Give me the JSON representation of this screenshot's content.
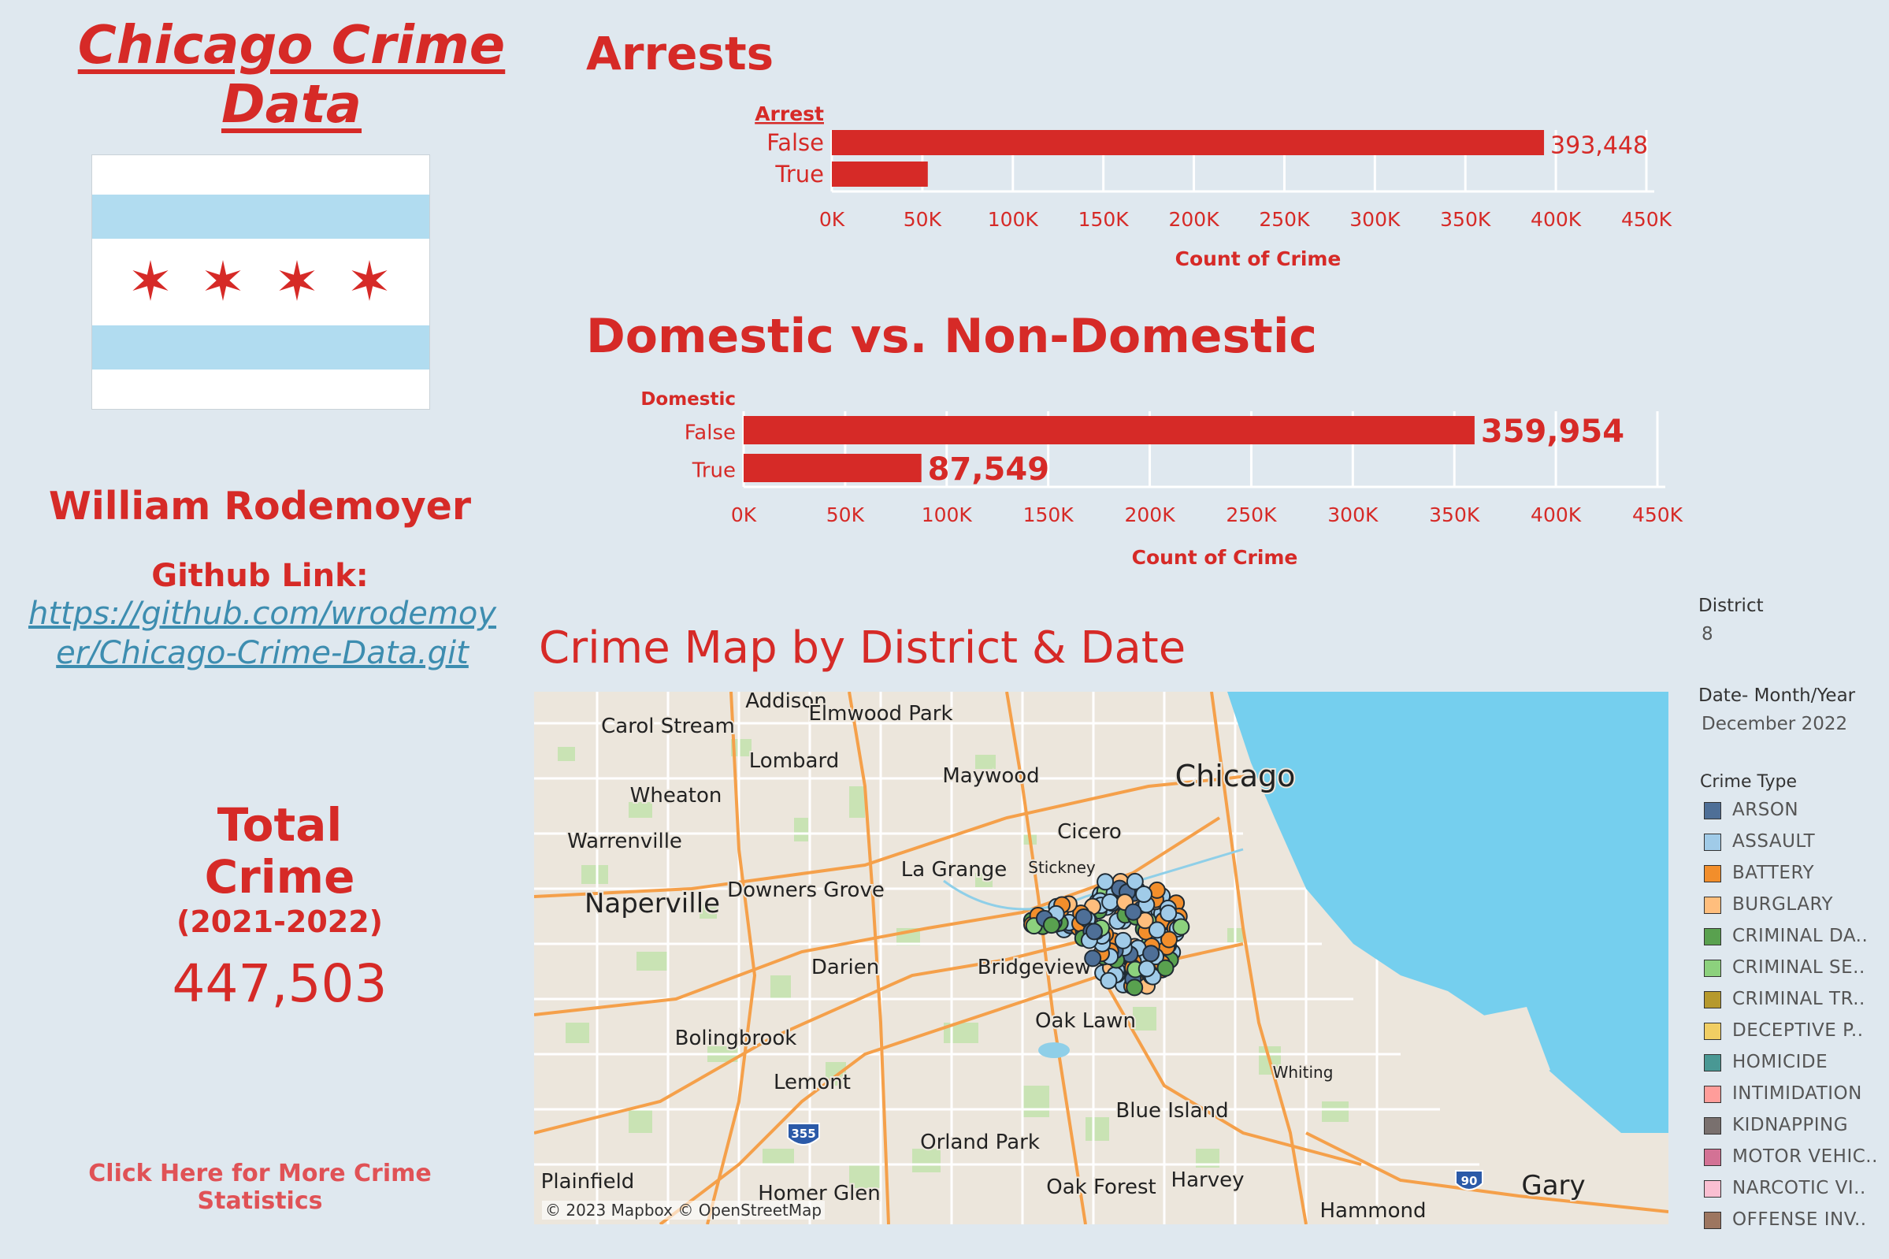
{
  "title": "Chicago Crime Data",
  "author": "William Rodemoyer",
  "github": {
    "label": "Github Link:",
    "url": "https://github.com/wrodemoyer/Chicago-Crime-Data.git"
  },
  "total": {
    "title_line1": "Total",
    "title_line2": "Crime",
    "years": "(2021-2022)",
    "value": "447,503"
  },
  "more_link": "Click Here for More Crime Statistics",
  "arrests_title": "Arrests",
  "domestic_title": "Domestic vs. Non-Domestic",
  "map": {
    "title": "Crime Map by District & Date",
    "attribution": "© 2023 Mapbox © OpenStreetMap",
    "places": [
      "Addison",
      "Carol Stream",
      "Elmwood Park",
      "Lombard",
      "Maywood",
      "Chicago",
      "Wheaton",
      "Cicero",
      "Warrenville",
      "Stickney",
      "La Grange",
      "Downers Grove",
      "Naperville",
      "Darien",
      "Bridgeview",
      "Oak Lawn",
      "Bolingbrook",
      "Whiting",
      "Lemont",
      "Blue Island",
      "Orland Park",
      "Plainfield",
      "Harvey",
      "Homer Glen",
      "Oak Forest",
      "Gary",
      "Hammond"
    ],
    "shields": [
      "355",
      "90"
    ]
  },
  "filters": {
    "district_label": "District",
    "district_value": "8",
    "date_label": "Date- Month/Year",
    "date_value": "December 2022",
    "crime_type_label": "Crime Type"
  },
  "legend": [
    {
      "label": "ARSON",
      "color": "#4e6f97"
    },
    {
      "label": "ASSAULT",
      "color": "#a0cbe8"
    },
    {
      "label": "BATTERY",
      "color": "#f28e2b"
    },
    {
      "label": "BURGLARY",
      "color": "#ffbe7d"
    },
    {
      "label": "CRIMINAL DA..",
      "color": "#59a14f"
    },
    {
      "label": "CRIMINAL SE..",
      "color": "#8cd17d"
    },
    {
      "label": "CRIMINAL TR..",
      "color": "#b6992d"
    },
    {
      "label": "DECEPTIVE P..",
      "color": "#f1ce63"
    },
    {
      "label": "HOMICIDE",
      "color": "#499894"
    },
    {
      "label": "INTIMIDATION",
      "color": "#ff9d9a"
    },
    {
      "label": "KIDNAPPING",
      "color": "#79706e"
    },
    {
      "label": "MOTOR VEHIC..",
      "color": "#d37295"
    },
    {
      "label": "NARCOTIC VI..",
      "color": "#fabfd2"
    },
    {
      "label": "OFFENSE INV..",
      "color": "#9d7660"
    }
  ],
  "colors": {
    "accent": "#d62a27",
    "lake": "#75cfee",
    "link": "#3d8db0"
  },
  "chart_data": [
    {
      "type": "bar",
      "orientation": "horizontal",
      "title": "Arrests",
      "legend_title": "Arrest",
      "categories": [
        "False",
        "True"
      ],
      "values": [
        393448,
        53000
      ],
      "value_labels": [
        "393,448",
        ""
      ],
      "xlabel": "Count of Crime",
      "xlim": [
        0,
        450000
      ],
      "ticks": [
        "0K",
        "50K",
        "100K",
        "150K",
        "200K",
        "250K",
        "300K",
        "350K",
        "400K",
        "450K"
      ],
      "grid": true
    },
    {
      "type": "bar",
      "orientation": "horizontal",
      "title": "Domestic vs. Non-Domestic",
      "legend_title": "Domestic",
      "categories": [
        "False",
        "True"
      ],
      "values": [
        359954,
        87549
      ],
      "value_labels": [
        "359,954",
        "87,549"
      ],
      "xlabel": "Count of Crime",
      "xlim": [
        0,
        450000
      ],
      "ticks": [
        "0K",
        "50K",
        "100K",
        "150K",
        "200K",
        "250K",
        "300K",
        "350K",
        "400K",
        "450K"
      ],
      "grid": true
    }
  ]
}
